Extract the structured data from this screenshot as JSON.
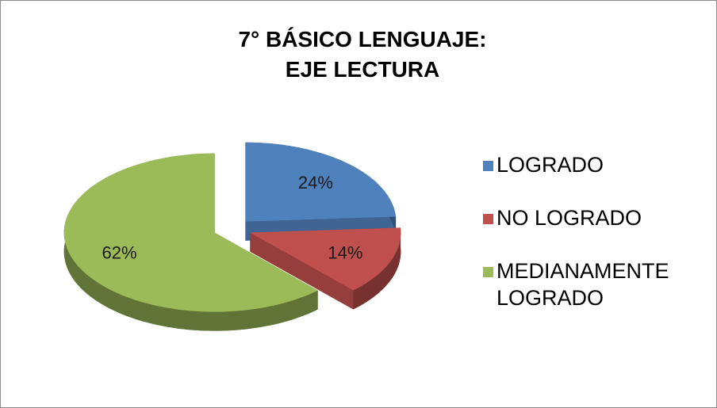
{
  "chart_data": {
    "type": "pie",
    "title": [
      "7° BÁSICO LENGUAJE:",
      "EJE  LECTURA"
    ],
    "categories": [
      "LOGRADO",
      "NO LOGRADO",
      "MEDIANAMENTE LOGRADO"
    ],
    "values": [
      24,
      14,
      62
    ],
    "value_labels": [
      "24%",
      "14%",
      "62%"
    ],
    "colors": [
      "#4f81bd",
      "#c0504d",
      "#9bbb59"
    ],
    "legend": "right"
  }
}
